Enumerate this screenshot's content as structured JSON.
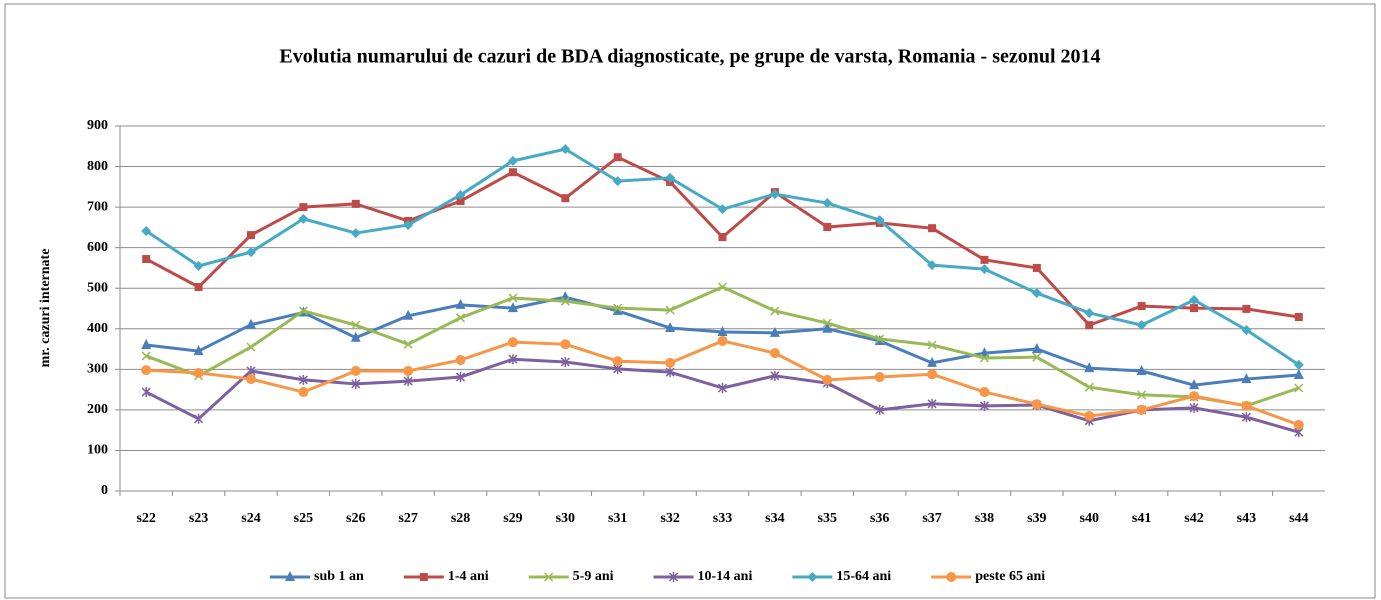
{
  "chart_data": {
    "type": "line",
    "title": "Evolutia numarului de cazuri de BDA diagnosticate, pe grupe de varsta, Romania - sezonul 2014",
    "y_label": "mr. cazuri internate",
    "categories": [
      "s22",
      "s23",
      "s24",
      "s25",
      "s26",
      "s27",
      "s28",
      "s29",
      "s30",
      "s31",
      "s32",
      "s33",
      "s34",
      "s35",
      "s36",
      "s37",
      "s38",
      "s39",
      "s40",
      "s41",
      "s42",
      "s43",
      "s44"
    ],
    "series": [
      {
        "name": "sub 1 an",
        "color": "#4a7ebb",
        "marker": "triangle",
        "values": [
          360,
          345,
          410,
          440,
          378,
          432,
          459,
          451,
          478,
          444,
          402,
          392,
          390,
          400,
          370,
          316,
          340,
          350,
          303,
          296,
          261,
          276,
          286
        ]
      },
      {
        "name": "1-4 ani",
        "color": "#be4b48",
        "marker": "square",
        "values": [
          572,
          503,
          631,
          700,
          708,
          666,
          715,
          786,
          722,
          823,
          762,
          626,
          737,
          651,
          661,
          648,
          570,
          550,
          409,
          456,
          451,
          449,
          429
        ]
      },
      {
        "name": "5-9 ani",
        "color": "#98b954",
        "marker": "x",
        "values": [
          333,
          284,
          355,
          444,
          409,
          362,
          427,
          476,
          468,
          451,
          446,
          503,
          444,
          414,
          375,
          360,
          328,
          330,
          256,
          237,
          232,
          210,
          254
        ]
      },
      {
        "name": "10-14 ani",
        "color": "#7d60a0",
        "marker": "star",
        "values": [
          244,
          178,
          296,
          274,
          264,
          271,
          281,
          325,
          318,
          301,
          293,
          254,
          284,
          266,
          200,
          215,
          210,
          212,
          173,
          200,
          205,
          182,
          145
        ]
      },
      {
        "name": "15-64 ani",
        "color": "#46aac5",
        "marker": "diamond",
        "values": [
          641,
          555,
          589,
          671,
          636,
          656,
          730,
          814,
          843,
          764,
          772,
          695,
          732,
          710,
          668,
          557,
          547,
          488,
          439,
          409,
          471,
          397,
          311
        ]
      },
      {
        "name": "peste 65 ani",
        "color": "#f79646",
        "marker": "circle",
        "values": [
          298,
          291,
          276,
          244,
          296,
          296,
          323,
          367,
          362,
          320,
          316,
          370,
          340,
          274,
          281,
          288,
          244,
          214,
          185,
          200,
          234,
          210,
          163
        ]
      }
    ],
    "ylim": [
      0,
      900
    ],
    "yticks": [
      0,
      100,
      200,
      300,
      400,
      500,
      600,
      700,
      800,
      900
    ],
    "grid": true,
    "legend": "bottom"
  }
}
